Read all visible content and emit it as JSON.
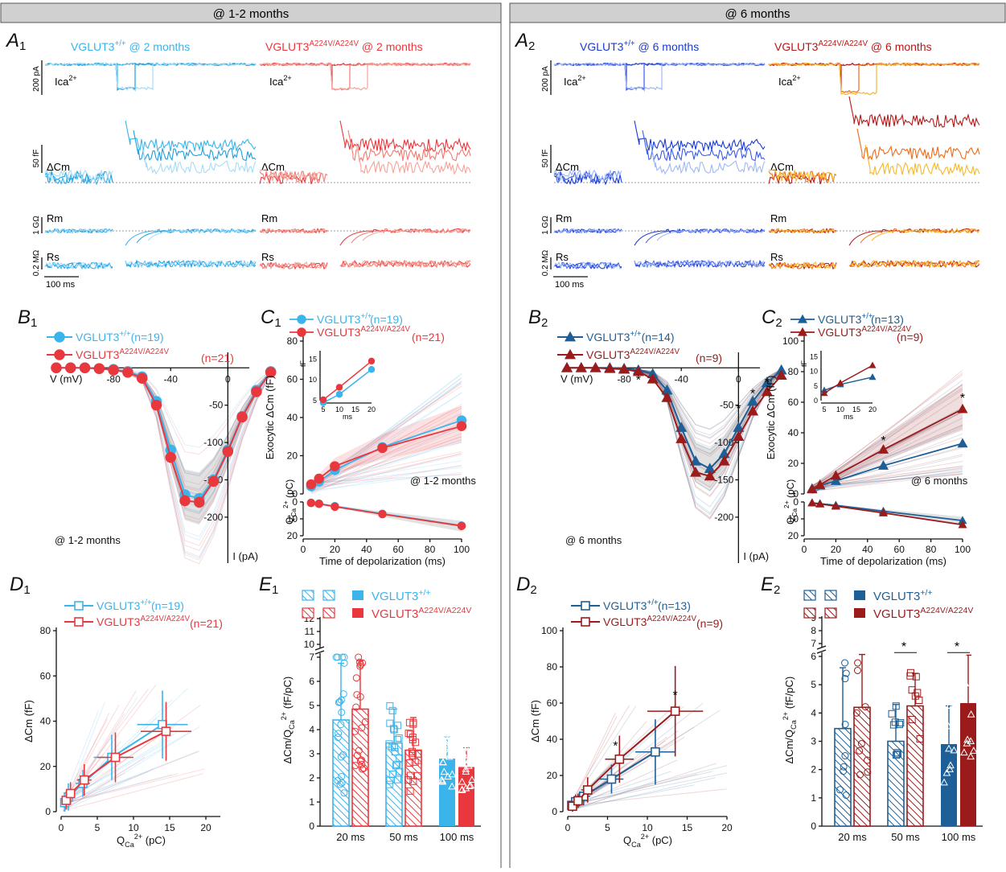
{
  "header": {
    "left": "@ 1-2 months",
    "right": "@ 6 months"
  },
  "colors": {
    "wt1": "#3bb4ec",
    "ko1": "#e8383d",
    "wt2": "#1d5f96",
    "ko2": "#9b1b1b",
    "wt2_trace": "#1a3bd0",
    "ko2_trace": "#d8300e",
    "wt1_light": "#a8dcf6",
    "ko1_light": "#f6a49a"
  },
  "A1": {
    "label": "A",
    "sub": "1",
    "wt_title": "VGLUT3",
    "wt_sup": "+/+",
    "wt_suffix": " @ 2 months",
    "ko_title": "VGLUT3",
    "ko_sup": "A224V/A224V",
    "ko_suffix": " @ 2 months",
    "ica": "Ica",
    "ica_sup": "2+",
    "dcm": "ΔCm",
    "rm": "Rm",
    "rs": "Rs",
    "scale_ica": "200 pA",
    "scale_cm": "50 fF",
    "scale_rm": "1 GΩ",
    "scale_rs": "0.2 MΩ",
    "scale_t": "100 ms"
  },
  "A2": {
    "label": "A",
    "sub": "2",
    "wt_title": "VGLUT3",
    "wt_sup": "+/+",
    "wt_suffix": " @ 6 months",
    "ko_title": "VGLUT3",
    "ko_sup": "A224V/A224V",
    "ko_suffix": " @ 6 months",
    "ica": "Ica",
    "ica_sup": "2+",
    "dcm": "ΔCm",
    "rm": "Rm",
    "rs": "Rs",
    "scale_ica": "200 pA",
    "scale_cm": "50 fF",
    "scale_rm": "1 GΩ",
    "scale_rs": "0.2 MΩ",
    "scale_t": "100 ms"
  },
  "chart_data": [
    {
      "panel": "B1",
      "type": "line",
      "xlabel": "V (mV)",
      "ylabel": "I (pA)",
      "note": "@ 1-2 months",
      "x_ticks": [
        -80,
        -40,
        0
      ],
      "y_ticks": [
        -50,
        -100,
        -150,
        -200
      ],
      "x_tick_labels": [
        "-80",
        "-40",
        "0"
      ],
      "y_tick_labels": [
        "-50",
        "-100",
        "-150",
        "-200"
      ],
      "xlim": [
        -120,
        15
      ],
      "ylim": [
        -240,
        10
      ],
      "series": [
        {
          "name": "VGLUT3",
          "sup": "+/+",
          "n": "(n=19)",
          "x": [
            -120,
            -110,
            -100,
            -90,
            -80,
            -70,
            -60,
            -50,
            -40,
            -30,
            -20,
            -10,
            0,
            10,
            20,
            30
          ],
          "y": [
            0,
            0,
            0,
            -1,
            -2,
            -5,
            -12,
            -45,
            -110,
            -170,
            -175,
            -150,
            -110,
            -65,
            -30,
            -5
          ]
        },
        {
          "name": "VGLUT3",
          "sup": "A224V/A224V",
          "n": "(n=21)",
          "x": [
            -120,
            -110,
            -100,
            -90,
            -80,
            -70,
            -60,
            -50,
            -40,
            -30,
            -20,
            -10,
            0,
            10,
            20,
            30
          ],
          "y": [
            0,
            0,
            0,
            -1,
            -3,
            -6,
            -14,
            -50,
            -120,
            -178,
            -180,
            -152,
            -112,
            -66,
            -32,
            -6
          ]
        }
      ]
    },
    {
      "panel": "C1",
      "type": "line",
      "xlabel": "Time of depolarization (ms)",
      "ylabel": "Exocytic ΔCm (fF)",
      "note": "@ 1-2 months",
      "x_ticks": [
        0,
        20,
        40,
        60,
        80,
        100
      ],
      "y_ticks": [
        0,
        20,
        40,
        60,
        80
      ],
      "q_label": "Q",
      "q_sub": "Ca",
      "q_sup": "2+",
      "q_unit": " (pC)",
      "q_ticks": [
        0,
        10,
        20
      ],
      "inset": {
        "ylabel": "fF",
        "xlabel": "ms",
        "x_ticks": [
          5,
          10,
          15,
          20
        ],
        "y_ticks": [
          5,
          10,
          15
        ],
        "series": [
          {
            "x": [
              5,
              10,
              20
            ],
            "y": [
              4.5,
              6.5,
              12.5
            ]
          },
          {
            "x": [
              5,
              10,
              20
            ],
            "y": [
              5.2,
              8.2,
              14.5
            ]
          }
        ]
      },
      "series": [
        {
          "name": "VGLUT3",
          "sup": "+/+",
          "n": "(n=19)",
          "x": [
            5,
            10,
            20,
            50,
            100
          ],
          "y": [
            4,
            6.5,
            12.5,
            24.5,
            38.5
          ],
          "q": [
            0.5,
            1,
            2.5,
            7,
            14
          ]
        },
        {
          "name": "VGLUT3",
          "sup": "A224V/A224V",
          "n": "(n=21)",
          "x": [
            5,
            10,
            20,
            50,
            100
          ],
          "y": [
            5,
            8,
            14.5,
            24,
            35.5
          ],
          "q": [
            0.6,
            1.1,
            2.8,
            7.2,
            14.2
          ]
        }
      ]
    },
    {
      "panel": "B2",
      "type": "line",
      "xlabel": "V (mV)",
      "ylabel": "I (pA)",
      "note": "@ 6 months",
      "x_ticks": [
        -80,
        -40,
        0
      ],
      "y_ticks": [
        -50,
        -100,
        -150,
        -200
      ],
      "x_tick_labels": [
        "-80",
        "-40",
        "0"
      ],
      "y_tick_labels": [
        "-50",
        "-100",
        "-150",
        "-200"
      ],
      "xlim": [
        -120,
        15
      ],
      "ylim": [
        -240,
        10
      ],
      "stars": [
        "*",
        "*",
        "*",
        "*"
      ],
      "series": [
        {
          "name": "VGLUT3",
          "sup": "+/+",
          "n": "(n=14)",
          "x": [
            -120,
            -110,
            -100,
            -90,
            -80,
            -70,
            -60,
            -50,
            -40,
            -30,
            -20,
            -10,
            0,
            10,
            20,
            30
          ],
          "y": [
            0,
            0,
            0,
            0,
            -1,
            -3,
            -8,
            -30,
            -80,
            -125,
            -135,
            -115,
            -80,
            -45,
            -20,
            -3
          ]
        },
        {
          "name": "VGLUT3",
          "sup": "A224V/A224V",
          "n": "(n=9)",
          "x": [
            -120,
            -110,
            -100,
            -90,
            -80,
            -70,
            -60,
            -50,
            -40,
            -30,
            -20,
            -10,
            0,
            10,
            20,
            30
          ],
          "y": [
            0,
            0,
            0,
            -1,
            -2,
            -5,
            -15,
            -40,
            -95,
            -140,
            -145,
            -125,
            -92,
            -58,
            -32,
            -10
          ]
        }
      ]
    },
    {
      "panel": "C2",
      "type": "line",
      "xlabel": "Time of depolarization (ms)",
      "ylabel": "Exocytic ΔCm (fF)",
      "note": "@ 6 months",
      "x_ticks": [
        0,
        20,
        40,
        60,
        80,
        100
      ],
      "y_ticks": [
        0,
        20,
        40,
        60,
        80,
        100
      ],
      "q_label": "Q",
      "q_sub": "Ca",
      "q_sup": "2+",
      "q_unit": " (pC)",
      "q_ticks": [
        0,
        10,
        20
      ],
      "stars": [
        "*",
        "*"
      ],
      "inset": {
        "ylabel": "fF",
        "xlabel": "ms",
        "x_ticks": [
          5,
          10,
          15,
          20
        ],
        "y_ticks": [
          0,
          5,
          10,
          15
        ],
        "series": [
          {
            "x": [
              5,
              10,
              20
            ],
            "y": [
              3.5,
              5.5,
              8
            ]
          },
          {
            "x": [
              5,
              10,
              20
            ],
            "y": [
              2.5,
              6,
              12
            ]
          }
        ]
      },
      "series": [
        {
          "name": "VGLUT3",
          "sup": "+/+",
          "n": "(n=13)",
          "x": [
            5,
            10,
            20,
            50,
            100
          ],
          "y": [
            3.5,
            5.5,
            8.5,
            18.5,
            33
          ],
          "q": [
            0.5,
            1,
            2,
            5.5,
            11
          ]
        },
        {
          "name": "VGLUT3",
          "sup": "A224V/A224V",
          "n": "(n=9)",
          "x": [
            5,
            10,
            20,
            50,
            100
          ],
          "y": [
            3,
            6,
            12,
            29,
            55.5
          ],
          "q": [
            0.6,
            1.2,
            2.5,
            6.5,
            13.5
          ]
        }
      ]
    },
    {
      "panel": "D1",
      "type": "scatter",
      "xlabel_main": "Q",
      "xlabel_sub": "Ca",
      "xlabel_sup": "2+",
      "xlabel_unit": " (pC)",
      "ylabel": "ΔCm (fF)",
      "x_ticks": [
        0,
        5,
        10,
        15,
        20
      ],
      "y_ticks": [
        0,
        20,
        40,
        60,
        80
      ],
      "xlim": [
        0,
        22
      ],
      "ylim": [
        0,
        80
      ],
      "series": [
        {
          "name": "VGLUT3",
          "sup": "+/+",
          "n": "(n=19)",
          "x": [
            0.5,
            1,
            3,
            7,
            14
          ],
          "y": [
            4,
            6.5,
            12.5,
            24,
            38.5
          ],
          "xerr": [
            0.3,
            0.5,
            1,
            2.5,
            3.5
          ],
          "yerr": [
            4,
            6,
            6,
            10,
            15
          ]
        },
        {
          "name": "VGLUT3",
          "sup": "A224V/A224V",
          "n": "(n=21)",
          "x": [
            0.7,
            1.3,
            3.2,
            7.5,
            14.5
          ],
          "y": [
            5,
            8,
            14,
            24,
            35.5
          ],
          "xerr": [
            0.3,
            0.5,
            1,
            2.5,
            3.5
          ],
          "yerr": [
            4,
            5,
            7,
            11,
            13
          ]
        }
      ]
    },
    {
      "panel": "E1",
      "type": "bar",
      "ylabel": "ΔCm/Q",
      "ylabel_sub": "Ca",
      "ylabel_sup": "2+",
      "ylabel_unit": " (fF/pC)",
      "categories": [
        "20 ms",
        "50 ms",
        "100 ms"
      ],
      "y_ticks": [
        0,
        1,
        2,
        3,
        4,
        5,
        6,
        7,
        10,
        11,
        12
      ],
      "legend": [
        {
          "name": "VGLUT3",
          "sup": "+/+"
        },
        {
          "name": "VGLUT3",
          "sup": "A224V/A224V"
        }
      ],
      "series": [
        {
          "name": "VGLUT3 +/+",
          "values": [
            4.4,
            3.45,
            2.8
          ],
          "err": [
            2.35,
            1.4,
            0.9
          ]
        },
        {
          "name": "VGLUT3 A224V/A224V",
          "values": [
            4.85,
            3.15,
            2.45
          ],
          "err": [
            2.0,
            1.35,
            0.8
          ]
        }
      ]
    },
    {
      "panel": "D2",
      "type": "scatter",
      "xlabel_main": "Q",
      "xlabel_sub": "Ca",
      "xlabel_sup": "2+",
      "xlabel_unit": " (pC)",
      "ylabel": "ΔCm (fF)",
      "x_ticks": [
        0,
        5,
        10,
        15,
        20
      ],
      "y_ticks": [
        0,
        20,
        40,
        60,
        80,
        100
      ],
      "xlim": [
        0,
        20
      ],
      "ylim": [
        0,
        100
      ],
      "stars": [
        "*",
        "*"
      ],
      "series": [
        {
          "name": "VGLUT3",
          "sup": "+/+",
          "n": "(n=13)",
          "x": [
            0.5,
            1,
            2,
            5.5,
            11
          ],
          "y": [
            3.5,
            5.5,
            8.5,
            18,
            33
          ],
          "xerr": [
            0.3,
            0.5,
            0.8,
            1.5,
            2.5
          ],
          "yerr": [
            3,
            4,
            5,
            8,
            18
          ]
        },
        {
          "name": "VGLUT3",
          "sup": "A224V/A224V",
          "n": "(n=9)",
          "x": [
            0.6,
            1.3,
            2.5,
            6.5,
            13.5
          ],
          "y": [
            3,
            6,
            12,
            29,
            55.5
          ],
          "xerr": [
            0.3,
            0.5,
            0.8,
            1.8,
            3.5
          ],
          "yerr": [
            3,
            4,
            7,
            13,
            25
          ]
        }
      ]
    },
    {
      "panel": "E2",
      "type": "bar",
      "ylabel": "ΔCm/Q",
      "ylabel_sub": "Ca",
      "ylabel_sup": "2+",
      "ylabel_unit": " (fF/pC)",
      "categories": [
        "20 ms",
        "50 ms",
        "100 ms"
      ],
      "y_ticks": [
        0,
        1,
        2,
        3,
        4,
        5,
        6,
        7,
        8,
        9
      ],
      "stars": [
        "*",
        "*"
      ],
      "legend": [
        {
          "name": "VGLUT3",
          "sup": "+/+"
        },
        {
          "name": "VGLUT3",
          "sup": "A224V/A224V"
        }
      ],
      "series": [
        {
          "name": "VGLUT3 +/+",
          "values": [
            3.45,
            3.0,
            2.9
          ],
          "err": [
            2.15,
            1.3,
            1.35
          ]
        },
        {
          "name": "VGLUT3 A224V/A224V",
          "values": [
            4.2,
            4.25,
            4.35
          ],
          "err": [
            1.95,
            1.15,
            1.75
          ]
        }
      ]
    }
  ]
}
